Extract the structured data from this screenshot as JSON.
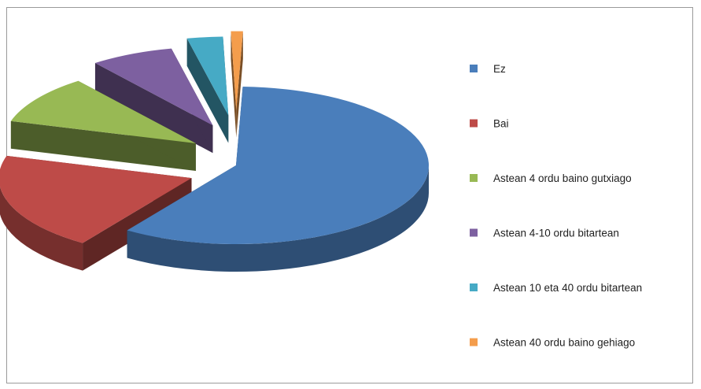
{
  "chart_data": {
    "type": "pie",
    "style": "3d-exploded",
    "legend_position": "right",
    "categories": [
      "Ez",
      "Bai",
      "Astean 4 ordu baino gutxiago",
      "Astean 4-10 ordu bitartean",
      "Astean 10 eta 40 ordu bitartean",
      "Astean 40 ordu baino gehiago"
    ],
    "values": [
      59,
      20,
      10,
      7,
      3,
      1
    ],
    "colors": [
      "#4a7ebb",
      "#be4b48",
      "#98b954",
      "#7d60a0",
      "#46aac5",
      "#f49d4c"
    ]
  }
}
